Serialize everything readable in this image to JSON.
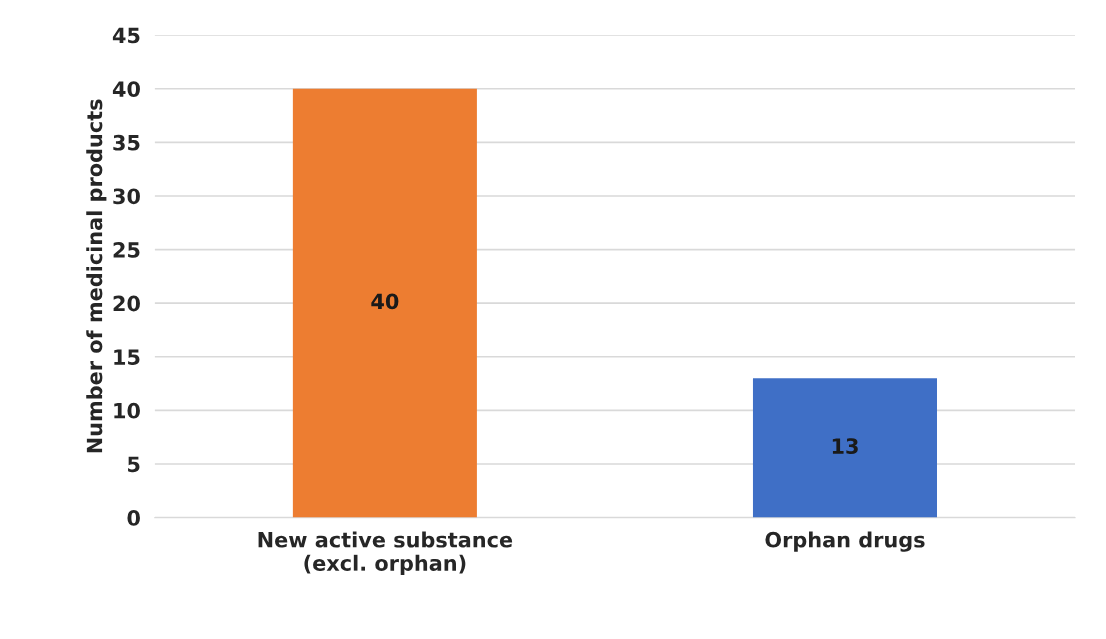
{
  "chart_data": {
    "type": "bar",
    "ylabel": "Number of medicinal products",
    "categories": [
      "New active substance\n(excl. orphan)",
      "Orphan drugs"
    ],
    "values": [
      40,
      13
    ],
    "colors": [
      "#ed7d31",
      "#3f6fc6"
    ],
    "ylim": [
      0,
      45
    ],
    "yticks": [
      0,
      5,
      10,
      15,
      20,
      25,
      30,
      35,
      40,
      45
    ],
    "grid": "y",
    "data_labels": true,
    "legend": false
  }
}
